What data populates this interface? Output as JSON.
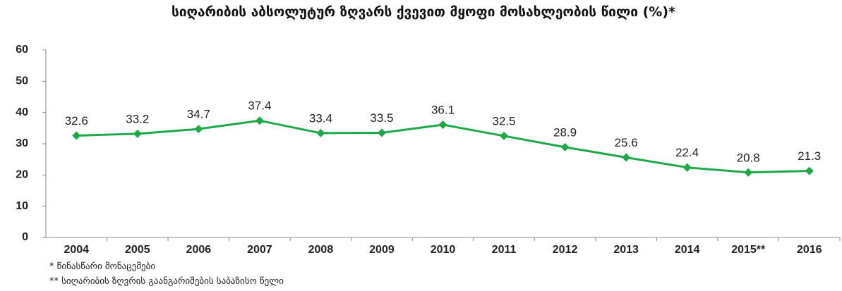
{
  "chart_data": {
    "type": "line",
    "title": "სიღარიბის აბსოლუტურ ზღვარს ქვევით მყოფი მოსახლეობის წილი (%)*",
    "categories": [
      "2004",
      "2005",
      "2006",
      "2007",
      "2008",
      "2009",
      "2010",
      "2011",
      "2012",
      "2013",
      "2014",
      "2015**",
      "2016"
    ],
    "values": [
      32.6,
      33.2,
      34.7,
      37.4,
      33.4,
      33.5,
      36.1,
      32.5,
      28.9,
      25.6,
      22.4,
      20.8,
      21.3
    ],
    "color": "#1fa84a",
    "ylim": [
      0,
      60
    ],
    "yticks": [
      0,
      10,
      20,
      30,
      40,
      50,
      60
    ],
    "grid": false,
    "notes": [
      "* წინასწარი მონაცემები",
      "** სიღარიბის ზღვრის გაანგარიშების საბაზისო წელი"
    ]
  }
}
